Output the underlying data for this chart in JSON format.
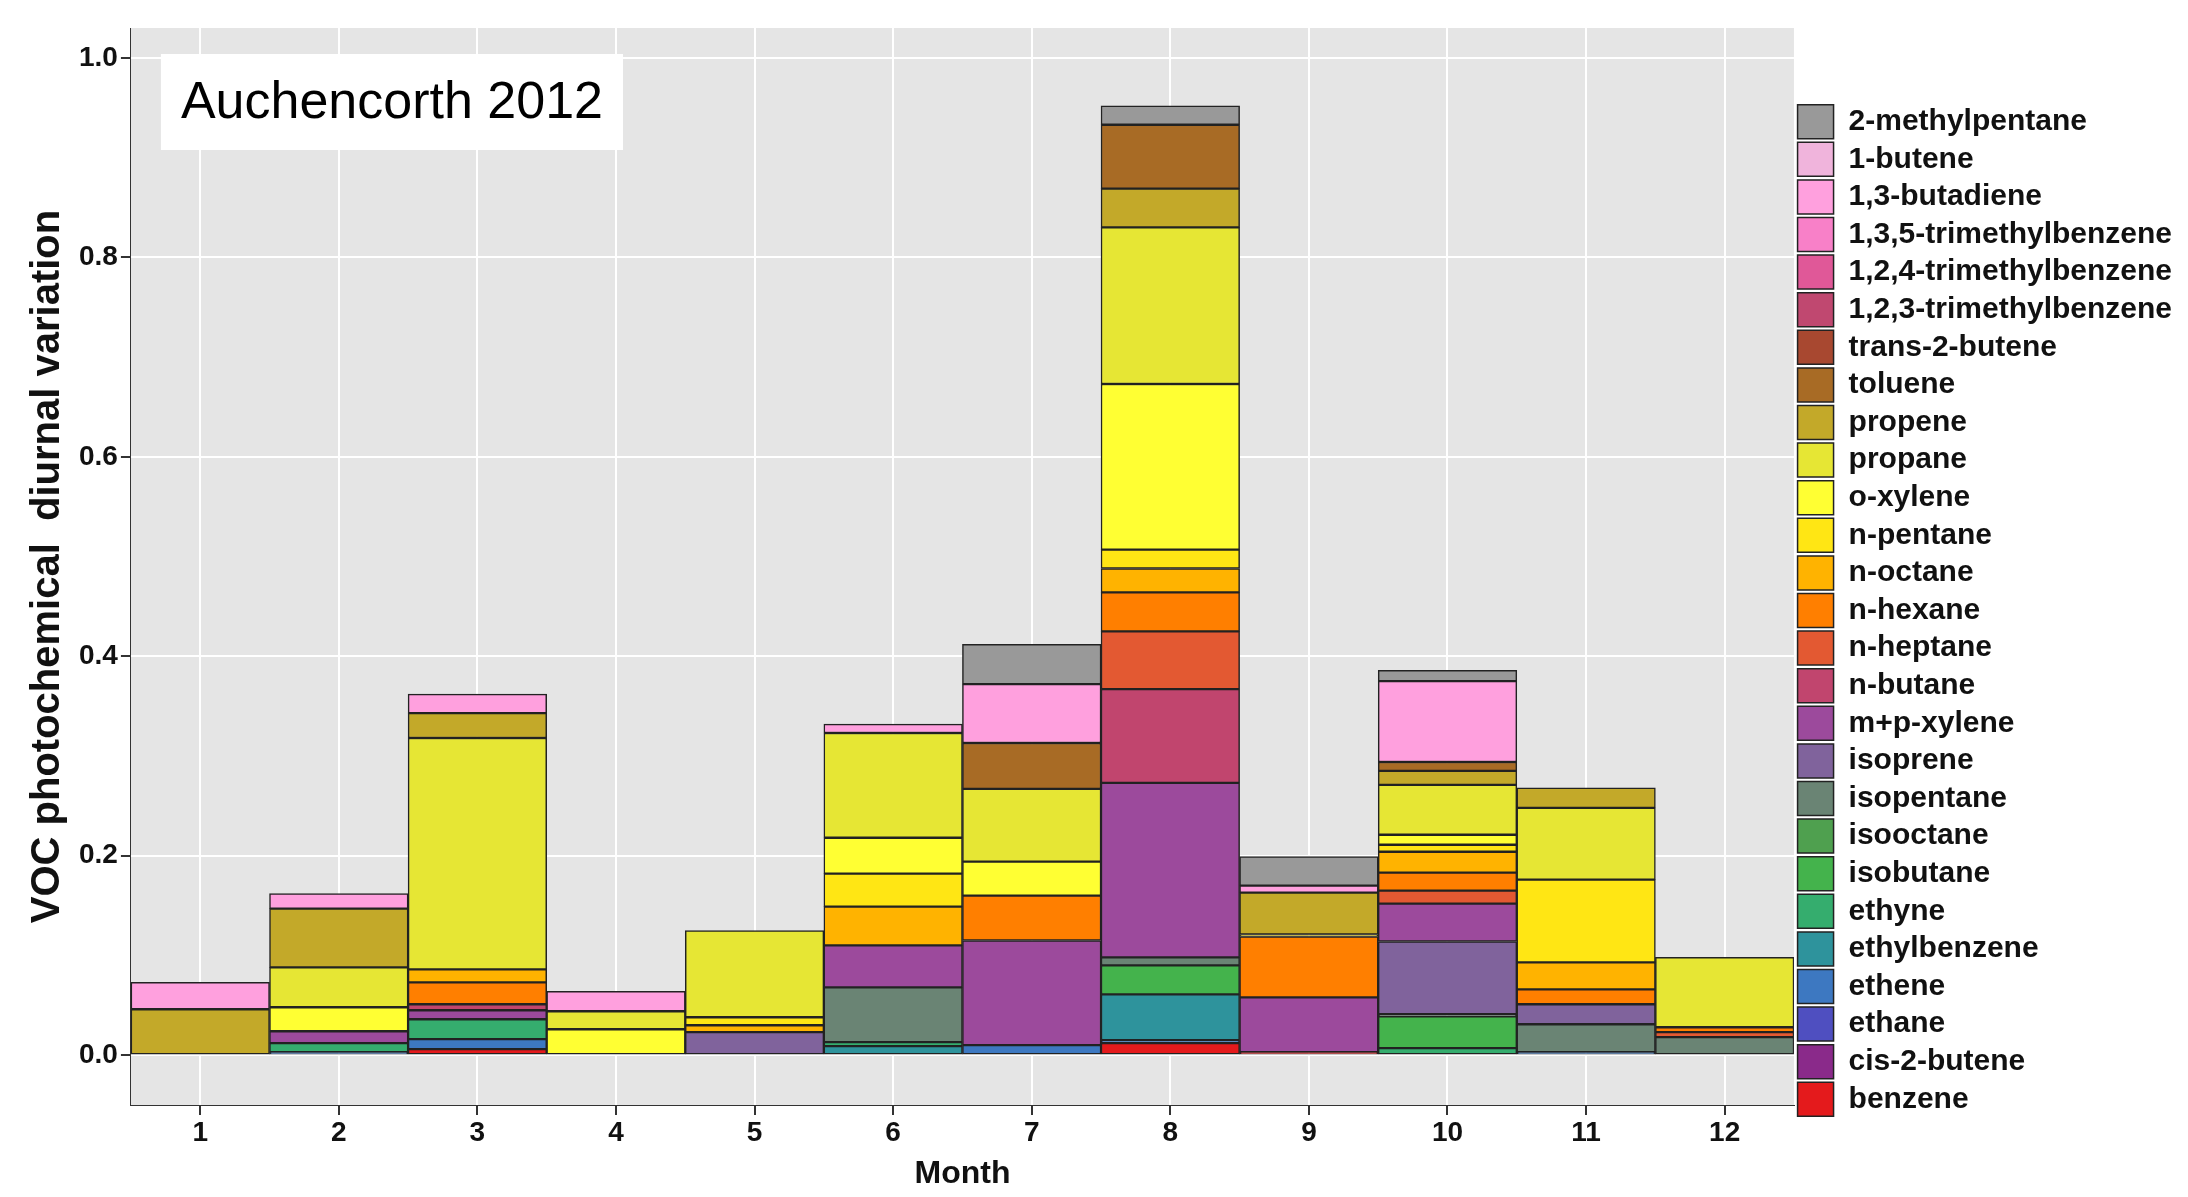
{
  "chart_data": {
    "type": "bar",
    "stacked": true,
    "xlabel": "Month",
    "ylabel": "VOC photochemical  diurnal variation",
    "annotations": [
      "Auchencorth 2012"
    ],
    "categories": [
      "1",
      "2",
      "3",
      "4",
      "5",
      "6",
      "7",
      "8",
      "9",
      "10",
      "11",
      "12"
    ],
    "ylim": [
      -0.05,
      1.03
    ],
    "yticks": [
      {
        "value": 0,
        "label": "0.0"
      },
      0.2,
      0.4,
      0.6,
      0.8,
      {
        "value": 1,
        "label": "1.0"
      }
    ],
    "grid": true,
    "legend": "right",
    "series": [
      {
        "name": "benzene",
        "color": "#e41a1c",
        "values": [
          null,
          null,
          0.006,
          null,
          null,
          null,
          null,
          0.012,
          0.003,
          null,
          null,
          null
        ]
      },
      {
        "name": "cis-2-butene",
        "color": "#8a2a8a",
        "values": [
          null,
          null,
          null,
          null,
          null,
          null,
          null,
          null,
          null,
          null,
          null,
          null
        ]
      },
      {
        "name": "ethane",
        "color": "#4f4fc0",
        "values": [
          null,
          null,
          null,
          null,
          null,
          null,
          null,
          null,
          null,
          null,
          null,
          null
        ]
      },
      {
        "name": "ethene",
        "color": "#3d78c1",
        "values": [
          null,
          0.003,
          0.01,
          null,
          null,
          null,
          0.01,
          0.003,
          null,
          null,
          0.003,
          null
        ]
      },
      {
        "name": "ethylbenzene",
        "color": "#2e939c",
        "values": [
          null,
          null,
          null,
          null,
          null,
          0.009,
          null,
          0.046,
          null,
          null,
          null,
          null
        ]
      },
      {
        "name": "ethyne",
        "color": "#35ad6e",
        "values": [
          null,
          0.009,
          0.02,
          null,
          null,
          0.004,
          null,
          null,
          null,
          0.007,
          null,
          null
        ]
      },
      {
        "name": "isobutane",
        "color": "#44b34c",
        "values": [
          null,
          null,
          null,
          null,
          null,
          null,
          null,
          0.029,
          null,
          0.032,
          null,
          null
        ]
      },
      {
        "name": "isooctane",
        "color": "#4fa04f",
        "values": [
          null,
          null,
          null,
          null,
          null,
          null,
          null,
          null,
          null,
          null,
          null,
          null
        ]
      },
      {
        "name": "isopentane",
        "color": "#6a8474",
        "values": [
          null,
          null,
          null,
          null,
          null,
          0.055,
          null,
          0.008,
          null,
          0.002,
          0.028,
          0.018
        ]
      },
      {
        "name": "isoprene",
        "color": "#80639c",
        "values": [
          null,
          null,
          null,
          null,
          0.023,
          null,
          null,
          null,
          null,
          0.073,
          0.02,
          null
        ]
      },
      {
        "name": "m+p-xylene",
        "color": "#9c4a9c",
        "values": [
          null,
          0.012,
          0.009,
          null,
          null,
          0.042,
          0.105,
          0.175,
          0.055,
          0.038,
          null,
          null
        ]
      },
      {
        "name": "n-butane",
        "color": "#c1456e",
        "values": [
          null,
          null,
          0.006,
          null,
          null,
          null,
          null,
          0.094,
          null,
          null,
          null,
          null
        ]
      },
      {
        "name": "n-heptane",
        "color": "#e35932",
        "values": [
          null,
          null,
          null,
          null,
          null,
          null,
          null,
          0.058,
          null,
          0.013,
          null,
          0.005
        ]
      },
      {
        "name": "n-hexane",
        "color": "#ff7f00",
        "values": [
          null,
          null,
          0.022,
          null,
          null,
          null,
          0.045,
          0.039,
          0.061,
          0.018,
          0.015,
          0.005
        ]
      },
      {
        "name": "n-octane",
        "color": "#ffb300",
        "values": [
          null,
          null,
          0.013,
          null,
          0.007,
          0.039,
          null,
          0.024,
          null,
          0.021,
          0.027,
          null
        ]
      },
      {
        "name": "n-pentane",
        "color": "#ffe614",
        "values": [
          null,
          null,
          null,
          null,
          0.008,
          0.033,
          null,
          0.019,
          0.002,
          0.007,
          0.083,
          null
        ]
      },
      {
        "name": "o-xylene",
        "color": "#ffff33",
        "values": [
          null,
          0.024,
          null,
          0.026,
          null,
          0.036,
          0.034,
          0.166,
          null,
          0.01,
          null,
          null
        ]
      },
      {
        "name": "propane",
        "color": "#e6e634",
        "values": [
          null,
          0.04,
          0.232,
          0.018,
          0.087,
          0.105,
          0.073,
          0.157,
          null,
          0.05,
          0.072,
          0.07
        ]
      },
      {
        "name": "propene",
        "color": "#c3a929",
        "values": [
          0.046,
          0.059,
          0.025,
          null,
          null,
          null,
          null,
          0.039,
          0.042,
          0.014,
          0.02,
          null
        ]
      },
      {
        "name": "toluene",
        "color": "#a86b25",
        "values": [
          null,
          null,
          null,
          null,
          null,
          null,
          0.046,
          0.064,
          null,
          0.009,
          null,
          null
        ]
      },
      {
        "name": "trans-2-butene",
        "color": "#a84830",
        "values": [
          null,
          null,
          null,
          null,
          null,
          null,
          null,
          null,
          null,
          null,
          null,
          null
        ]
      },
      {
        "name": "1,2,3-trimethylbenzene",
        "color": "#c04870",
        "values": [
          null,
          null,
          null,
          null,
          null,
          null,
          null,
          null,
          null,
          null,
          null,
          null
        ]
      },
      {
        "name": "1,2,4-trimethylbenzene",
        "color": "#e05898",
        "values": [
          null,
          null,
          null,
          null,
          null,
          null,
          null,
          null,
          null,
          null,
          null,
          null
        ]
      },
      {
        "name": "1,3,5-trimethylbenzene",
        "color": "#f880c8",
        "values": [
          null,
          null,
          null,
          null,
          null,
          null,
          null,
          null,
          null,
          null,
          null,
          null
        ]
      },
      {
        "name": "1,3-butadiene",
        "color": "#ffa0de",
        "values": [
          0.027,
          0.015,
          0.019,
          0.02,
          null,
          0.009,
          0.059,
          null,
          0.007,
          0.081,
          null,
          null
        ]
      },
      {
        "name": "1-butene",
        "color": "#f0b4dc",
        "values": [
          null,
          null,
          null,
          null,
          null,
          null,
          null,
          null,
          null,
          null,
          null,
          null
        ]
      },
      {
        "name": "2-methylpentane",
        "color": "#999999",
        "values": [
          null,
          null,
          null,
          null,
          null,
          null,
          0.04,
          0.019,
          0.029,
          0.011,
          null,
          null
        ]
      }
    ]
  }
}
